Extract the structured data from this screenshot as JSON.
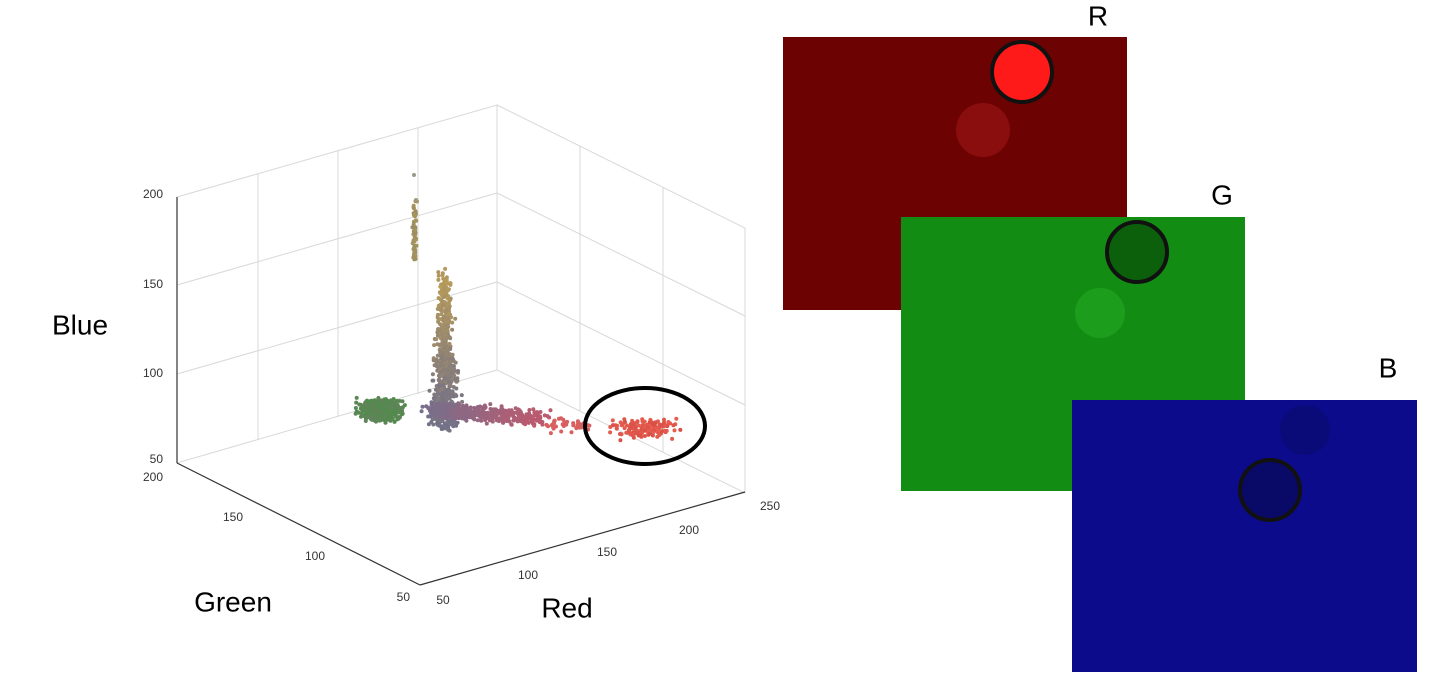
{
  "plot": {
    "axis_labels": {
      "blue": "Blue",
      "green": "Green",
      "red": "Red"
    },
    "blue_ticks": [
      "200",
      "150",
      "100",
      "50"
    ],
    "green_ticks": [
      "200",
      "150",
      "100",
      "50"
    ],
    "red_ticks": [
      "50",
      "100",
      "150",
      "200",
      "250"
    ]
  },
  "channels": [
    {
      "label": "R"
    },
    {
      "label": "G"
    },
    {
      "label": "B"
    }
  ]
}
